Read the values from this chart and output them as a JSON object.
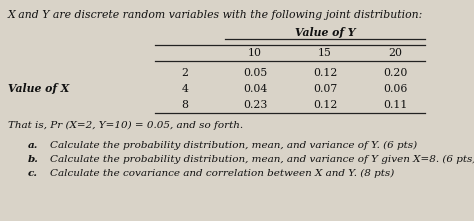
{
  "title": "X and Y are discrete random variables with the following joint distribution:",
  "value_of_y_label": "Value of Y",
  "value_of_x_label": "Value of X",
  "y_values": [
    "10",
    "15",
    "20"
  ],
  "x_values": [
    "2",
    "4",
    "8"
  ],
  "table_data": [
    [
      0.05,
      0.12,
      0.2
    ],
    [
      0.04,
      0.07,
      0.06
    ],
    [
      0.23,
      0.12,
      0.11
    ]
  ],
  "note": "That is, Pr (X=2, Y=10) = 0.05, and so forth.",
  "questions": [
    "Calculate the probability distribution, mean, and variance of Y. (6 pts)",
    "Calculate the probability distribution, mean, and variance of Y given X=8. (6 pts)",
    "Calculate the covariance and correlation between X and Y. (8 pts)"
  ],
  "q_labels": [
    "a.",
    "b.",
    "c."
  ],
  "bg_color": "#d9d3c8",
  "text_color": "#111111",
  "line_color": "#222222"
}
